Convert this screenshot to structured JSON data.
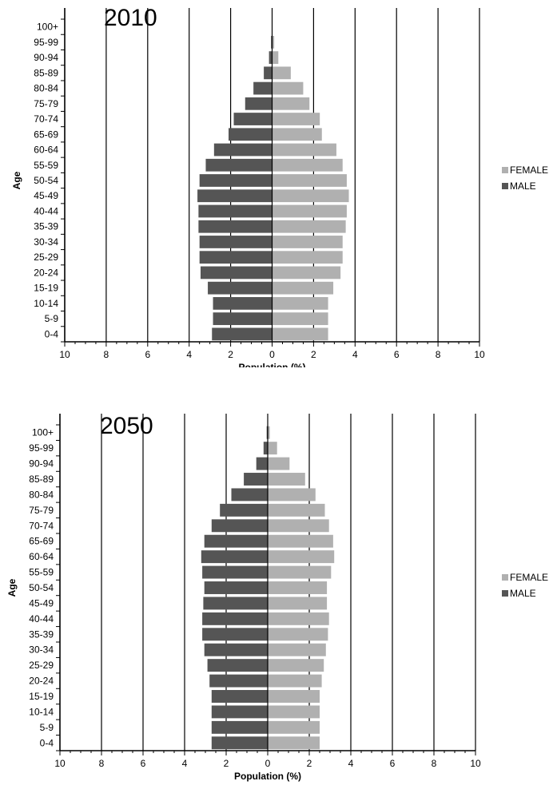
{
  "chart_data": [
    {
      "type": "bar",
      "orientation": "horizontal",
      "title": "2010",
      "xlabel": "Population (%)",
      "ylabel": "Age",
      "xlim": [
        -10,
        10
      ],
      "x_ticks": [
        10,
        8,
        6,
        4,
        2,
        0,
        2,
        4,
        6,
        8,
        10
      ],
      "legend_position": "right",
      "grid": "vertical",
      "categories": [
        "0-4",
        "5-9",
        "10-14",
        "15-19",
        "20-24",
        "25-29",
        "30-34",
        "35-39",
        "40-44",
        "45-49",
        "50-54",
        "55-59",
        "60-64",
        "65-69",
        "70-74",
        "75-79",
        "80-84",
        "85-89",
        "90-94",
        "95-99",
        "100+"
      ],
      "series": [
        {
          "name": "FEMALE",
          "color": "#b0b0b0",
          "values": [
            2.7,
            2.7,
            2.7,
            2.95,
            3.3,
            3.4,
            3.4,
            3.55,
            3.6,
            3.7,
            3.6,
            3.4,
            3.1,
            2.4,
            2.3,
            1.8,
            1.5,
            0.9,
            0.3,
            0.1,
            0.0
          ]
        },
        {
          "name": "MALE",
          "color": "#555555",
          "values": [
            2.9,
            2.85,
            2.85,
            3.1,
            3.45,
            3.5,
            3.5,
            3.55,
            3.55,
            3.6,
            3.5,
            3.2,
            2.8,
            2.1,
            1.85,
            1.3,
            0.9,
            0.4,
            0.15,
            0.05,
            0.0
          ]
        }
      ]
    },
    {
      "type": "bar",
      "orientation": "horizontal",
      "title": "2050",
      "xlabel": "Population (%)",
      "ylabel": "Age",
      "xlim": [
        -10,
        10
      ],
      "x_ticks": [
        10,
        8,
        6,
        4,
        2,
        0,
        2,
        4,
        6,
        8,
        10
      ],
      "legend_position": "right",
      "grid": "vertical",
      "categories": [
        "0-4",
        "5-9",
        "10-14",
        "15-19",
        "20-24",
        "25-29",
        "30-34",
        "35-39",
        "40-44",
        "45-49",
        "50-54",
        "55-59",
        "60-64",
        "65-69",
        "70-74",
        "75-79",
        "80-84",
        "85-89",
        "90-94",
        "95-99",
        "100+"
      ],
      "series": [
        {
          "name": "FEMALE",
          "color": "#b0b0b0",
          "values": [
            2.5,
            2.5,
            2.5,
            2.5,
            2.6,
            2.7,
            2.8,
            2.9,
            2.95,
            2.85,
            2.85,
            3.05,
            3.2,
            3.15,
            2.95,
            2.75,
            2.3,
            1.8,
            1.05,
            0.45,
            0.1
          ]
        },
        {
          "name": "MALE",
          "color": "#555555",
          "values": [
            2.7,
            2.7,
            2.7,
            2.7,
            2.8,
            2.9,
            3.05,
            3.15,
            3.15,
            3.1,
            3.05,
            3.15,
            3.2,
            3.05,
            2.7,
            2.3,
            1.75,
            1.15,
            0.55,
            0.2,
            0.05
          ]
        }
      ]
    }
  ]
}
